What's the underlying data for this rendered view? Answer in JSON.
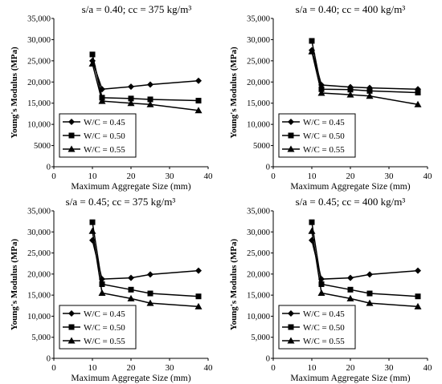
{
  "figure": {
    "ylabel": "Young's Modulus (MPa)",
    "xlabel": "Maximum Aggregate Size (mm)"
  },
  "chart_data": [
    {
      "type": "line",
      "title": "s/a = 0.40; cc = 375 kg/m³",
      "xlabel": "Maximum Aggregate Size (mm)",
      "ylabel": "Young's Modulus (MPa)",
      "xlim": [
        0,
        40
      ],
      "ylim": [
        0,
        35000
      ],
      "xticks": [
        "0",
        "10",
        "20",
        "30",
        "40"
      ],
      "yticks": [
        "0",
        "5000",
        "10,000",
        "15,000",
        "20,000",
        "25,000",
        "30,000",
        "35,000"
      ],
      "legend": "lower-left",
      "grid": false,
      "x": [
        10,
        12.5,
        20,
        25,
        37.5
      ],
      "series": [
        {
          "name": "W/C = 0.45",
          "marker": "diamond",
          "values": [
            25000,
            18300,
            18900,
            19400,
            20300
          ]
        },
        {
          "name": "W/C = 0.50",
          "marker": "square",
          "values": [
            26500,
            16300,
            16100,
            15900,
            15600
          ]
        },
        {
          "name": "W/C = 0.55",
          "marker": "triangle",
          "values": [
            24300,
            15500,
            15000,
            14700,
            13300
          ]
        }
      ]
    },
    {
      "type": "line",
      "title": "s/a = 0.40; cc = 400 kg/m³",
      "xlabel": "Maximum Aggregate Size (mm)",
      "ylabel": "Young's Modulus (MPa)",
      "xlim": [
        0,
        40
      ],
      "ylim": [
        0,
        35000
      ],
      "xticks": [
        "0",
        "10",
        "20",
        "30",
        "40"
      ],
      "yticks": [
        "0",
        "5000",
        "10,000",
        "15,000",
        "20,000",
        "25,000",
        "30,000",
        "35,000"
      ],
      "legend": "lower-left",
      "grid": false,
      "x": [
        10,
        12.5,
        20,
        25,
        37.5
      ],
      "series": [
        {
          "name": "W/C = 0.45",
          "marker": "diamond",
          "values": [
            27500,
            19300,
            18800,
            18600,
            18300
          ]
        },
        {
          "name": "W/C = 0.50",
          "marker": "square",
          "values": [
            29700,
            18300,
            18200,
            17900,
            17500
          ]
        },
        {
          "name": "W/C = 0.55",
          "marker": "triangle",
          "values": [
            27200,
            17400,
            17000,
            16700,
            14700
          ]
        }
      ]
    },
    {
      "type": "line",
      "title": "s/a = 0.45; cc = 375 kg/m³",
      "xlabel": "Maximum Aggregate Size (mm)",
      "ylabel": "Young's Modulus (MPa)",
      "xlim": [
        0,
        40
      ],
      "ylim": [
        0,
        35000
      ],
      "xticks": [
        "0",
        "10",
        "20",
        "30",
        "40"
      ],
      "yticks": [
        "0",
        "5,000",
        "10,000",
        "15,000",
        "20,000",
        "25,000",
        "30,000",
        "35,000"
      ],
      "legend": "lower-left",
      "grid": false,
      "x": [
        10,
        12.5,
        20,
        25,
        37.5
      ],
      "series": [
        {
          "name": "W/C = 0.45",
          "marker": "diamond",
          "values": [
            28000,
            18800,
            19100,
            19900,
            20800
          ]
        },
        {
          "name": "W/C = 0.50",
          "marker": "square",
          "values": [
            32300,
            17600,
            16300,
            15400,
            14700
          ]
        },
        {
          "name": "W/C = 0.55",
          "marker": "triangle",
          "values": [
            30200,
            15500,
            14200,
            13100,
            12300
          ]
        }
      ]
    },
    {
      "type": "line",
      "title": "s/a = 0.45; cc = 400 kg/m³",
      "xlabel": "Maximum Aggregate Size (mm)",
      "ylabel": "Young's Modulus (MPa)",
      "xlim": [
        0,
        40
      ],
      "ylim": [
        0,
        35000
      ],
      "xticks": [
        "0",
        "10",
        "20",
        "30",
        "40"
      ],
      "yticks": [
        "0",
        "5,000",
        "10,000",
        "15,000",
        "20,000",
        "25,000",
        "30,000",
        "35,000"
      ],
      "legend": "lower-left",
      "grid": false,
      "x": [
        10,
        12.5,
        20,
        25,
        37.5
      ],
      "series": [
        {
          "name": "W/C = 0.45",
          "marker": "diamond",
          "values": [
            28000,
            18800,
            19100,
            19900,
            20800
          ]
        },
        {
          "name": "W/C = 0.50",
          "marker": "square",
          "values": [
            32300,
            17600,
            16300,
            15400,
            14700
          ]
        },
        {
          "name": "W/C = 0.55",
          "marker": "triangle",
          "values": [
            30200,
            15500,
            14200,
            13100,
            12300
          ]
        }
      ]
    }
  ]
}
